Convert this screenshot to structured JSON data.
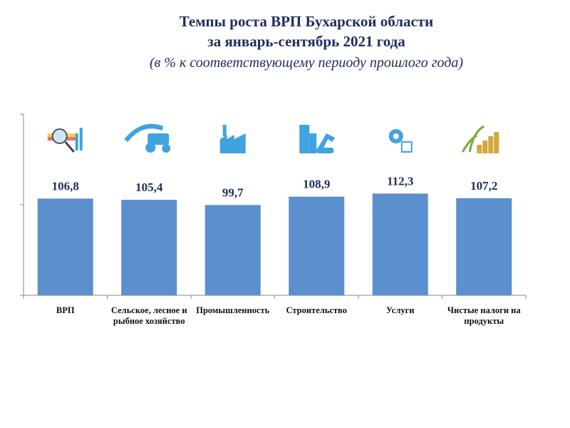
{
  "chart_data": {
    "type": "bar",
    "title": "Темпы роста ВРП Бухарской области",
    "title_line2": "за январь-сентябрь 2021 года",
    "subtitle": "(в % к соответствующему периоду прошлого года)",
    "categories": [
      [
        "ВРП"
      ],
      [
        "Сельское, лесное и",
        "рыбное хозяйство"
      ],
      [
        "Промышленность"
      ],
      [
        "Строительство"
      ],
      [
        "Услуги"
      ],
      [
        "Чистые налоги  на",
        "продукты"
      ]
    ],
    "values": [
      106.8,
      105.4,
      99.7,
      108.9,
      112.3,
      107.2
    ],
    "data_labels": [
      "106,8",
      "105,4",
      "99,7",
      "108,9",
      "112,3",
      "107,2"
    ],
    "icons": [
      "analytics-magnifier-icon",
      "tractor-field-icon",
      "factory-icon",
      "construction-excavator-icon",
      "services-gears-icon",
      "money-growth-icon"
    ],
    "ylim": [
      0,
      200
    ],
    "y_tick_labels_shown": false,
    "grid": false,
    "legend": "none",
    "bar_color": "#5b8fcd",
    "icon_color": "#3fa3df",
    "title_color": "#1f2d5e"
  }
}
